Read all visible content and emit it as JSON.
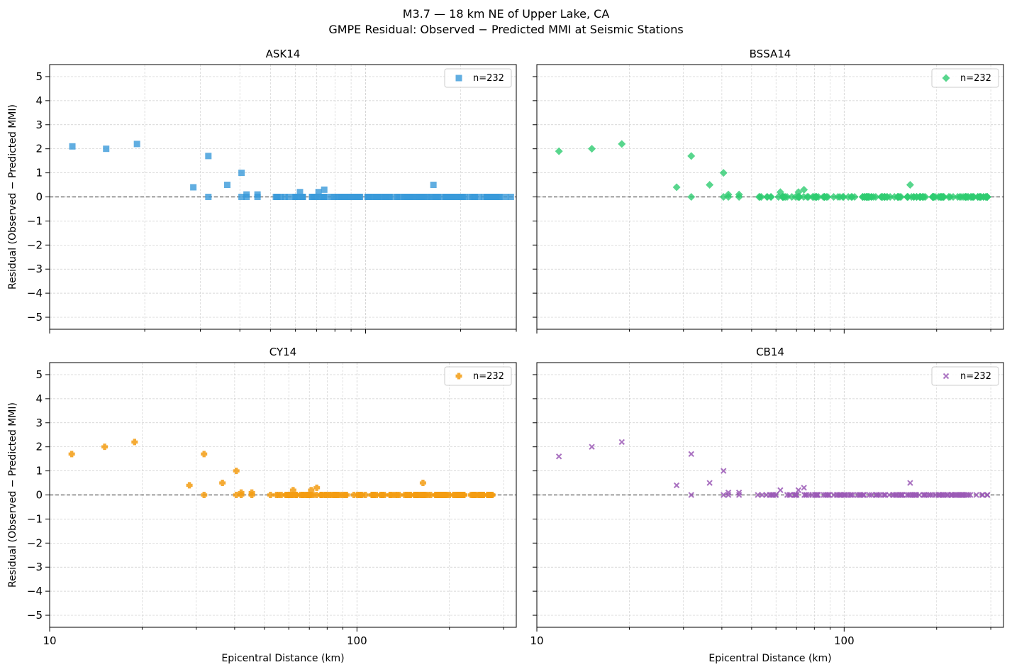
{
  "figure": {
    "title_line1": "M3.7 — 18 km NE of Upper Lake, CA",
    "title_line2": "GMPE Residual: Observed − Predicted MMI at Seismic Stations"
  },
  "chart_data": [
    {
      "type": "scatter",
      "title": "ASK14",
      "xlabel": "",
      "ylabel": "Residual (Observed − Predicted MMI)",
      "xscale": "log",
      "xlim": [
        10,
        300
      ],
      "ylim": [
        -5.5,
        5.5
      ],
      "xticks": [
        "",
        ""
      ],
      "yticks": [
        "−5",
        "−4",
        "−3",
        "−2",
        "−1",
        "0",
        "1",
        "2",
        "3",
        "4",
        "5"
      ],
      "grid": true,
      "legend": "top-right",
      "legend_label": "n=232",
      "marker": "square",
      "color": "#3a9ad9",
      "zero_line": true,
      "points": [
        [
          11.8,
          2.1
        ],
        [
          15.1,
          2.0
        ],
        [
          18.9,
          2.2
        ],
        [
          28.5,
          0.4
        ],
        [
          31.8,
          1.7
        ],
        [
          31.8,
          0.0
        ],
        [
          36.5,
          0.5
        ],
        [
          40.5,
          1.0
        ],
        [
          40.5,
          0.0
        ],
        [
          42.0,
          0.1
        ],
        [
          42.0,
          0.0
        ],
        [
          45.5,
          0.1
        ],
        [
          45.5,
          0.0
        ],
        [
          62.0,
          0.2
        ],
        [
          71.0,
          0.2
        ],
        [
          74.0,
          0.3
        ],
        [
          164.0,
          0.5
        ]
      ],
      "zero_range": [
        52,
        290
      ]
    },
    {
      "type": "scatter",
      "title": "BSSA14",
      "xlabel": "",
      "ylabel": "",
      "xscale": "log",
      "xlim": [
        10,
        330
      ],
      "ylim": [
        -5.5,
        5.5
      ],
      "xticks": [
        "",
        ""
      ],
      "yticks": [
        "",
        "",
        "",
        "",
        "",
        "",
        "",
        "",
        "",
        "",
        ""
      ],
      "grid": true,
      "legend": "top-right",
      "legend_label": "n=232",
      "marker": "diamond",
      "color": "#2ecc71",
      "zero_line": true,
      "points": [
        [
          11.8,
          1.9
        ],
        [
          15.1,
          2.0
        ],
        [
          18.9,
          2.2
        ],
        [
          28.5,
          0.4
        ],
        [
          31.8,
          1.7
        ],
        [
          31.8,
          0.0
        ],
        [
          36.5,
          0.5
        ],
        [
          40.5,
          1.0
        ],
        [
          40.5,
          0.0
        ],
        [
          42.0,
          0.1
        ],
        [
          42.0,
          0.0
        ],
        [
          45.5,
          0.1
        ],
        [
          45.5,
          0.0
        ],
        [
          62.0,
          0.2
        ],
        [
          71.0,
          0.2
        ],
        [
          74.0,
          0.3
        ],
        [
          164.0,
          0.5
        ]
      ],
      "zero_range": [
        52,
        295
      ]
    },
    {
      "type": "scatter",
      "title": "CY14",
      "xlabel": "Epicentral Distance (km)",
      "ylabel": "Residual (Observed − Predicted MMI)",
      "xscale": "log",
      "xlim": [
        10,
        330
      ],
      "ylim": [
        -5.5,
        5.5
      ],
      "xticks": [
        "10",
        "100"
      ],
      "yticks": [
        "−5",
        "−4",
        "−3",
        "−2",
        "−1",
        "0",
        "1",
        "2",
        "3",
        "4",
        "5"
      ],
      "grid": true,
      "legend": "top-right",
      "legend_label": "n=232",
      "marker": "plus",
      "color": "#f39c12",
      "zero_line": true,
      "points": [
        [
          11.8,
          1.7
        ],
        [
          15.1,
          2.0
        ],
        [
          18.9,
          2.2
        ],
        [
          28.5,
          0.4
        ],
        [
          31.8,
          1.7
        ],
        [
          31.8,
          0.0
        ],
        [
          36.5,
          0.5
        ],
        [
          40.5,
          1.0
        ],
        [
          40.5,
          0.0
        ],
        [
          42.0,
          0.1
        ],
        [
          42.0,
          0.0
        ],
        [
          45.5,
          0.1
        ],
        [
          45.5,
          0.0
        ],
        [
          62.0,
          0.2
        ],
        [
          71.0,
          0.2
        ],
        [
          74.0,
          0.3
        ],
        [
          164.0,
          0.5
        ]
      ],
      "zero_range": [
        52,
        290
      ]
    },
    {
      "type": "scatter",
      "title": "CB14",
      "xlabel": "Epicentral Distance (km)",
      "ylabel": "",
      "xscale": "log",
      "xlim": [
        10,
        330
      ],
      "ylim": [
        -5.5,
        5.5
      ],
      "xticks": [
        "10",
        "100"
      ],
      "yticks": [
        "",
        "",
        "",
        "",
        "",
        "",
        "",
        "",
        "",
        "",
        ""
      ],
      "grid": true,
      "legend": "top-right",
      "legend_label": "n=232",
      "marker": "x",
      "color": "#9b59b6",
      "zero_line": true,
      "points": [
        [
          11.8,
          1.6
        ],
        [
          15.1,
          2.0
        ],
        [
          18.9,
          2.2
        ],
        [
          28.5,
          0.4
        ],
        [
          31.8,
          1.7
        ],
        [
          31.8,
          0.0
        ],
        [
          36.5,
          0.5
        ],
        [
          40.5,
          1.0
        ],
        [
          40.5,
          0.0
        ],
        [
          42.0,
          0.1
        ],
        [
          42.0,
          0.0
        ],
        [
          45.5,
          0.1
        ],
        [
          45.5,
          0.0
        ],
        [
          62.0,
          0.2
        ],
        [
          71.0,
          0.2
        ],
        [
          74.0,
          0.3
        ],
        [
          164.0,
          0.5
        ]
      ],
      "zero_range": [
        52,
        295
      ]
    }
  ]
}
